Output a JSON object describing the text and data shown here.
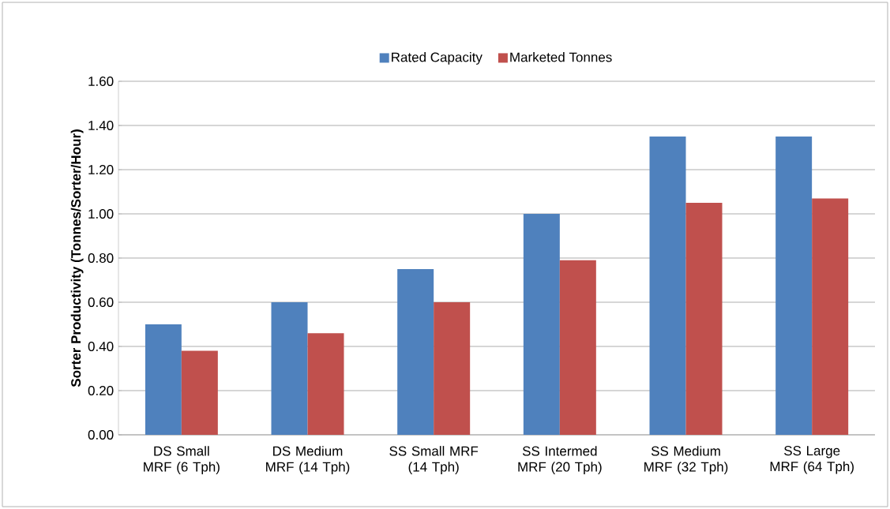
{
  "chart_data": {
    "type": "bar",
    "ylabel": "Sorter Productivity (Tonnes/Sorter/Hour)",
    "categories": [
      "DS Small MRF (6 Tph)",
      "DS Medium MRF (14 Tph)",
      "SS Small MRF (14 Tph)",
      "SS Intermed MRF  (20 Tph)",
      "SS Medium MRF (32 Tph)",
      "SS Large MRF (64 Tph)"
    ],
    "series": [
      {
        "name": "Rated Capacity",
        "color": "#4f81bd",
        "values": [
          0.5,
          0.6,
          0.75,
          1.0,
          1.35,
          1.35
        ]
      },
      {
        "name": "Marketed Tonnes",
        "color": "#c0504d",
        "values": [
          0.38,
          0.46,
          0.6,
          0.79,
          1.05,
          1.07
        ]
      }
    ],
    "ylim": [
      0,
      1.6
    ],
    "yticks": [
      {
        "value": 0,
        "label": "0.00"
      },
      {
        "value": 0.2,
        "label": "0.20"
      },
      {
        "value": 0.4,
        "label": "0.40"
      },
      {
        "value": 0.6,
        "label": "0.60"
      },
      {
        "value": 0.8,
        "label": "0.80"
      },
      {
        "value": 1.0,
        "label": "1.00"
      },
      {
        "value": 1.2,
        "label": "1.20"
      },
      {
        "value": 1.4,
        "label": "1.40"
      },
      {
        "value": 1.6,
        "label": "1.60"
      }
    ],
    "grid": "y",
    "legend": "top"
  }
}
